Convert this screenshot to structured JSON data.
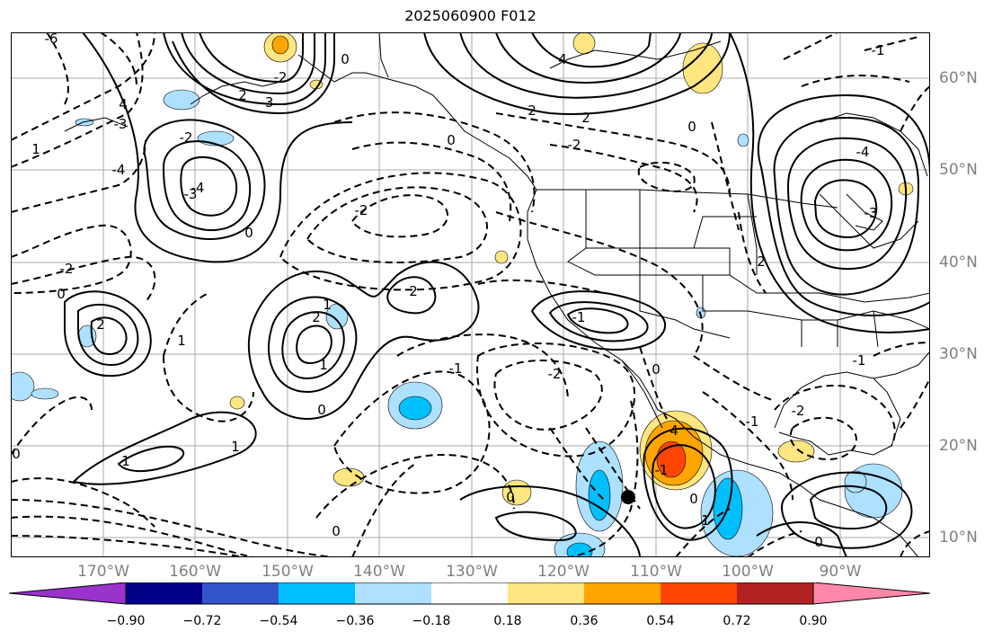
{
  "title": "2025060900 F012",
  "lon_labels": [
    "170°W",
    "160°W",
    "150°W",
    "140°W",
    "130°W",
    "120°W",
    "110°W",
    "100°W",
    "90°W"
  ],
  "lat_labels": [
    "60°N",
    "50°N",
    "40°N",
    "30°N",
    "20°N",
    "10°N"
  ],
  "colorbar": {
    "tick_labels": [
      "−0.90",
      "−0.72",
      "−0.54",
      "−0.36",
      "−0.18",
      "0.18",
      "0.36",
      "0.54",
      "0.72",
      "0.90"
    ],
    "colors": [
      "#9933cc",
      "#000088",
      "#3355cc",
      "#00bfff",
      "#aee0ff",
      "#ffffff",
      "#ffe680",
      "#ffa500",
      "#ff4500",
      "#b22222",
      "#ff88aa"
    ]
  },
  "contour_labels": {
    "l1": "-6",
    "l2": "-2",
    "l3": "0",
    "l4": "2",
    "l5": "4",
    "l6": "-3",
    "l7": "-3",
    "l8": "-2",
    "l9": "1",
    "l10": "-4",
    "l11": "-3",
    "l12": "-4",
    "l13": "4",
    "l14": "2",
    "l15": "0",
    "l16": "-2",
    "l17": "0",
    "l18": "2",
    "l19": "0",
    "l20": "1",
    "l21": "2",
    "l22": "2",
    "l23": "0",
    "l24": "-2",
    "l25": "-2",
    "l26": "2",
    "l27": "1",
    "l28": "-1",
    "l29": "0",
    "l30": "1",
    "l31": "-1",
    "l32": "-2",
    "l33": "0",
    "l34": "1",
    "l35": "0",
    "l36": "1",
    "l37": "0",
    "l38": "0",
    "l39": "-1",
    "l40": "4",
    "l41": "1",
    "l42": "-1",
    "l43": "0",
    "l44": "-1",
    "l45": "-2",
    "l46": "0",
    "l47": "-3",
    "l48": "-1",
    "l49": "2",
    "l50": "-4"
  }
}
